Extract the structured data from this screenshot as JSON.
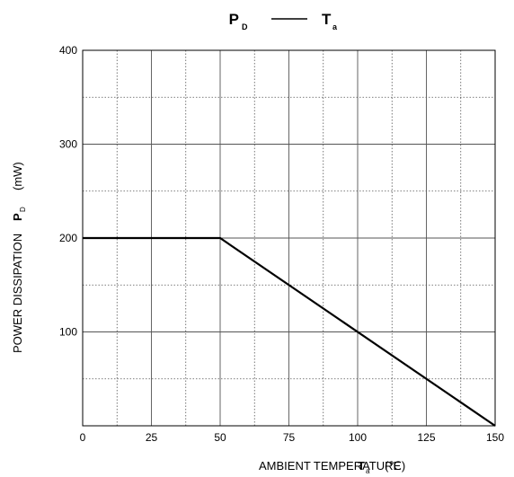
{
  "chart_data": {
    "type": "line",
    "title": {
      "left_symbol": "P",
      "left_subscript": "D",
      "dash": "——",
      "right_symbol": "T",
      "right_subscript": "a"
    },
    "xlabel": {
      "text": "AMBIENT TEMPERATURE",
      "symbol": "T",
      "subscript": "a",
      "unit": "(℃)"
    },
    "ylabel": {
      "text": "POWER DISSIPATION",
      "symbol": "P",
      "subscript": "D",
      "unit": "(mW)"
    },
    "xlim": [
      0,
      150
    ],
    "ylim": [
      0,
      400
    ],
    "x_ticks": [
      0,
      25,
      50,
      75,
      100,
      125,
      150
    ],
    "y_ticks": [
      100,
      200,
      300,
      400
    ],
    "x_minor_ticks": [
      12.5,
      37.5,
      62.5,
      87.5,
      112.5,
      137.5
    ],
    "y_minor_ticks": [
      50,
      150,
      250,
      350
    ],
    "grid": true,
    "series": [
      {
        "x": [
          0,
          50,
          150
        ],
        "y": [
          200,
          200,
          0
        ]
      }
    ],
    "colors": {
      "line": "#000000",
      "major_grid": "#555555",
      "minor_grid": "#555555",
      "frame": "#000000",
      "background": "#ffffff"
    }
  }
}
